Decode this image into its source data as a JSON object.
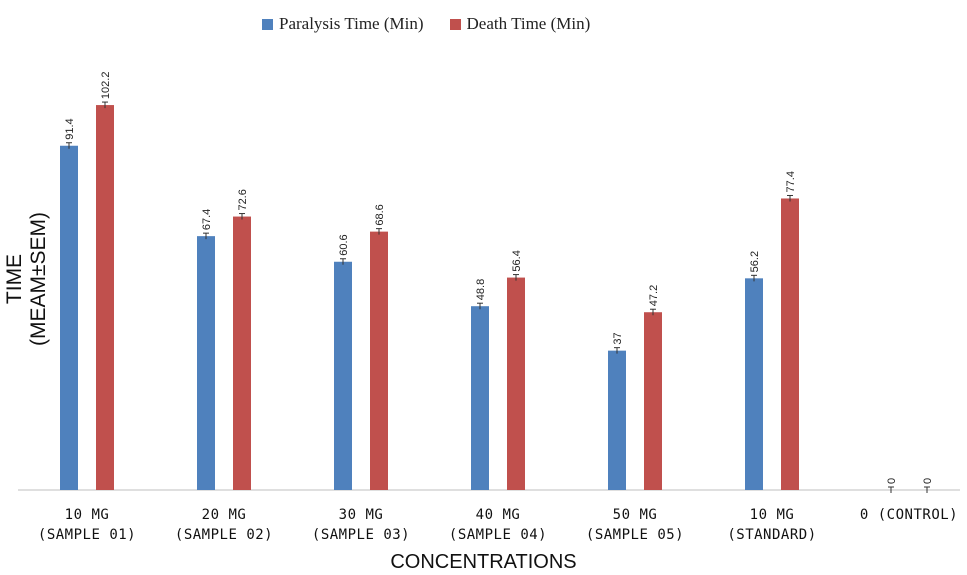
{
  "chart_data": {
    "type": "bar",
    "categories": [
      [
        "10 MG",
        "(SAMPLE 01)"
      ],
      [
        "20 MG",
        "(SAMPLE 02)"
      ],
      [
        "30 MG",
        "(SAMPLE 03)"
      ],
      [
        "40 MG",
        "(SAMPLE 04)"
      ],
      [
        "50 MG",
        "(SAMPLE 05)"
      ],
      [
        "10 MG",
        "(STANDARD)"
      ],
      [
        "0 (CONTROL)",
        ""
      ]
    ],
    "series": [
      {
        "name": "Paralysis Time (Min)",
        "color": "#4F81BD",
        "values": [
          91.4,
          67.4,
          60.6,
          48.8,
          37,
          56.2,
          0
        ],
        "labels": [
          "91.4",
          "67.4",
          "60.6",
          "48.8",
          "37",
          "56.2",
          "0"
        ]
      },
      {
        "name": "Death Time (Min)",
        "color": "#C0504D",
        "values": [
          102.2,
          72.6,
          68.6,
          56.4,
          47.2,
          77.4,
          0
        ],
        "labels": [
          "102.2",
          "72.6",
          "68.6",
          "56.4",
          "47.2",
          "77.4",
          "0"
        ]
      }
    ],
    "xlabel": "CONCENTRATIONS",
    "ylabel": "TIME (MEAM±SEM)",
    "ylim": [
      0,
      120
    ],
    "grid": false,
    "error_bars": true,
    "legend_position": "top-center"
  }
}
